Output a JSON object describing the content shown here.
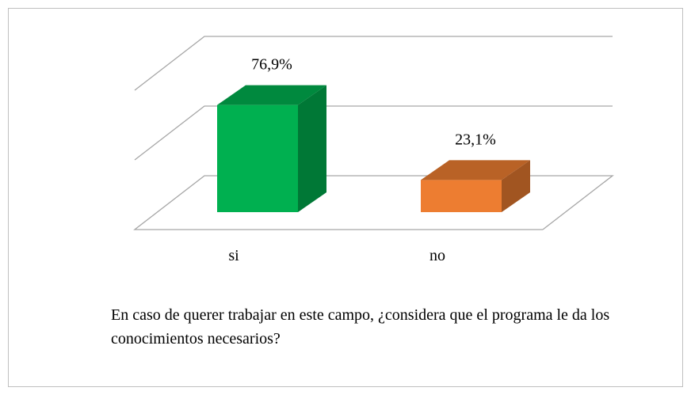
{
  "chart_data": {
    "type": "bar3d",
    "title": "En caso de querer trabajar en este campo, ¿considera que el programa le da los conocimientos necesarios?",
    "categories": [
      "si",
      "no"
    ],
    "values": [
      76.9,
      23.1
    ],
    "value_labels": [
      "76,9%",
      "23,1%"
    ],
    "colors": [
      "#00b050",
      "#ed7d31"
    ],
    "ylim": [
      0,
      100
    ],
    "yticks": [
      0,
      50,
      100
    ],
    "grid": true
  }
}
